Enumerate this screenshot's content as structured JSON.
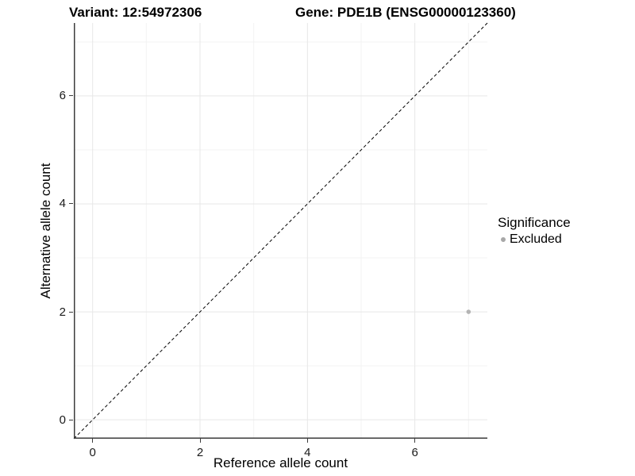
{
  "chart_data": {
    "type": "scatter",
    "title_left": "Variant: 12:54972306",
    "title_right": "Gene: PDE1B (ENSG00000123360)",
    "xlabel": "Reference allele count",
    "ylabel": "Alternative allele count",
    "xlim": [
      -0.35,
      7.35
    ],
    "ylim": [
      -0.35,
      7.35
    ],
    "x_major_ticks": [
      0,
      2,
      4,
      6
    ],
    "y_major_ticks": [
      0,
      2,
      4,
      6
    ],
    "x_minor_gridlines": [
      1,
      3,
      5,
      7
    ],
    "y_minor_gridlines": [
      1,
      3,
      5,
      7
    ],
    "grid": true,
    "reference_line": {
      "type": "identity",
      "slope": 1,
      "intercept": 0,
      "style": "dashed",
      "color": "#000000"
    },
    "series": [
      {
        "name": "Excluded",
        "color": "#b4b4b4",
        "points": [
          {
            "x": 7,
            "y": 2
          }
        ]
      }
    ],
    "legend": {
      "title": "Significance",
      "position": "right",
      "entries": [
        {
          "label": "Excluded",
          "color": "#a8a8a8"
        }
      ]
    },
    "colors": {
      "grid_major": "#e7e7e7",
      "grid_minor": "#f3f3f3",
      "axis_line": "#3c3c3c",
      "tick_text": "#1a1a1a"
    }
  }
}
